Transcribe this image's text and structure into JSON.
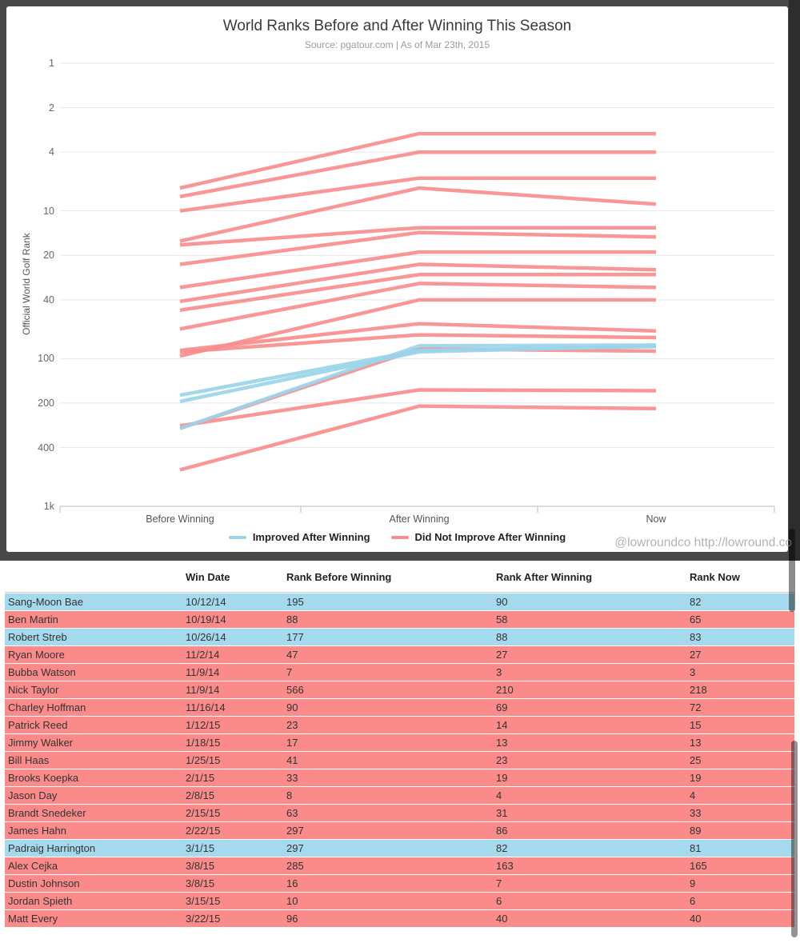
{
  "chart": {
    "title": "World Ranks Before and After Winning This Season",
    "subtitle": "Source: pgatour.com | As of Mar 23th, 2015",
    "y_axis_label": "Official World Golf Rank",
    "watermark": "@lowroundco http://lowround.co",
    "legend": [
      {
        "label": "Improved After Winning",
        "color": "#9bd4e9"
      },
      {
        "label": "Did Not Improve After Winning",
        "color": "#f88d8d"
      }
    ],
    "colors": {
      "improved_line": "#9bd4e9",
      "not_improved_line": "#f88d8d",
      "grid": "#e7e7e7",
      "axis": "#c9d2d8"
    }
  },
  "chart_data": {
    "type": "line",
    "x": [
      "Before Winning",
      "After Winning",
      "Now"
    ],
    "y_scale": "log",
    "ylim": [
      1,
      1000
    ],
    "y_ticks": [
      1,
      2,
      4,
      10,
      20,
      40,
      100,
      200,
      400,
      1000
    ],
    "y_tick_labels": [
      "1",
      "2",
      "4",
      "10",
      "20",
      "40",
      "100",
      "200",
      "400",
      "1k"
    ],
    "legend_position": "bottom",
    "series": [
      {
        "name": "Sang-Moon Bae",
        "win_date": "10/12/14",
        "values": [
          195,
          90,
          82
        ],
        "improved": true
      },
      {
        "name": "Ben Martin",
        "win_date": "10/19/14",
        "values": [
          88,
          58,
          65
        ],
        "improved": false
      },
      {
        "name": "Robert Streb",
        "win_date": "10/26/14",
        "values": [
          177,
          88,
          83
        ],
        "improved": true
      },
      {
        "name": "Ryan Moore",
        "win_date": "11/2/14",
        "values": [
          47,
          27,
          27
        ],
        "improved": false
      },
      {
        "name": "Bubba Watson",
        "win_date": "11/9/14",
        "values": [
          7,
          3,
          3
        ],
        "improved": false
      },
      {
        "name": "Nick Taylor",
        "win_date": "11/9/14",
        "values": [
          566,
          210,
          218
        ],
        "improved": false
      },
      {
        "name": "Charley Hoffman",
        "win_date": "11/16/14",
        "values": [
          90,
          69,
          72
        ],
        "improved": false
      },
      {
        "name": "Patrick Reed",
        "win_date": "1/12/15",
        "values": [
          23,
          14,
          15
        ],
        "improved": false
      },
      {
        "name": "Jimmy Walker",
        "win_date": "1/18/15",
        "values": [
          17,
          13,
          13
        ],
        "improved": false
      },
      {
        "name": "Bill Haas",
        "win_date": "1/25/15",
        "values": [
          41,
          23,
          25
        ],
        "improved": false
      },
      {
        "name": "Brooks Koepka",
        "win_date": "2/1/15",
        "values": [
          33,
          19,
          19
        ],
        "improved": false
      },
      {
        "name": "Jason Day",
        "win_date": "2/8/15",
        "values": [
          8,
          4,
          4
        ],
        "improved": false
      },
      {
        "name": "Brandt Snedeker",
        "win_date": "2/15/15",
        "values": [
          63,
          31,
          33
        ],
        "improved": false
      },
      {
        "name": "James Hahn",
        "win_date": "2/22/15",
        "values": [
          297,
          86,
          89
        ],
        "improved": false
      },
      {
        "name": "Padraig Harrington",
        "win_date": "3/1/15",
        "values": [
          297,
          82,
          81
        ],
        "improved": true
      },
      {
        "name": "Alex Cejka",
        "win_date": "3/8/15",
        "values": [
          285,
          163,
          165
        ],
        "improved": false
      },
      {
        "name": "Dustin Johnson",
        "win_date": "3/8/15",
        "values": [
          16,
          7,
          9
        ],
        "improved": false
      },
      {
        "name": "Jordan Spieth",
        "win_date": "3/15/15",
        "values": [
          10,
          6,
          6
        ],
        "improved": false
      },
      {
        "name": "Matt Every",
        "win_date": "3/22/15",
        "values": [
          96,
          40,
          40
        ],
        "improved": false
      }
    ]
  },
  "table": {
    "headers": [
      "",
      "Win Date",
      "Rank Before Winning",
      "Rank After Winning",
      "Rank Now"
    ],
    "row_colors": {
      "improved": "#a5daee",
      "not_improved": "#fb8b8b"
    }
  }
}
